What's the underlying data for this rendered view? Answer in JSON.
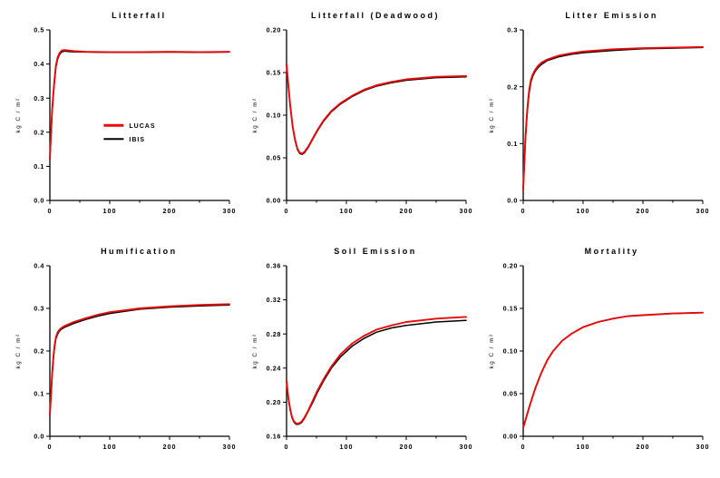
{
  "page": {
    "background": "#ffffff"
  },
  "colors": {
    "lucas": "#e80b0b",
    "ibis": "#000000",
    "axis": "#000000"
  },
  "legend": {
    "entries": [
      "LUCAS",
      "IBIS"
    ],
    "position": "inside-upper-left-of-middle"
  },
  "chart_data": [
    {
      "type": "line",
      "title": "Litterfall",
      "ylabel": "kg C / m²",
      "xlim": [
        0,
        300
      ],
      "ylim": [
        0,
        0.5
      ],
      "xticks": [
        0,
        100,
        200,
        300
      ],
      "xtick_labels": [
        "0",
        "100",
        "200",
        "300"
      ],
      "xticks_minor": [
        50,
        150,
        250
      ],
      "yticks": [
        0.0,
        0.1,
        0.2,
        0.3,
        0.4,
        0.5
      ],
      "ytick_labels": [
        "0.0",
        "0.1",
        "0.2",
        "0.3",
        "0.4",
        "0.5"
      ],
      "legend": true,
      "series": [
        {
          "name": "LUCAS",
          "color": "#e80b0b",
          "x": [
            0,
            2,
            4,
            6,
            8,
            10,
            13,
            16,
            20,
            25,
            30,
            40,
            60,
            100,
            150,
            200,
            250,
            300
          ],
          "y": [
            0.12,
            0.2,
            0.27,
            0.32,
            0.36,
            0.395,
            0.42,
            0.432,
            0.44,
            0.441,
            0.44,
            0.438,
            0.436,
            0.435,
            0.435,
            0.436,
            0.435,
            0.436
          ]
        },
        {
          "name": "IBIS",
          "color": "#000000",
          "x": [
            0,
            2,
            4,
            6,
            8,
            10,
            13,
            16,
            20,
            25,
            30,
            40,
            60,
            100,
            150,
            200,
            250,
            300
          ],
          "y": [
            0.12,
            0.195,
            0.265,
            0.315,
            0.355,
            0.39,
            0.415,
            0.428,
            0.436,
            0.438,
            0.437,
            0.436,
            0.435,
            0.434,
            0.434,
            0.435,
            0.434,
            0.435
          ]
        }
      ]
    },
    {
      "type": "line",
      "title": "Litterfall (Deadwood)",
      "ylabel": "kg C / m²",
      "xlim": [
        0,
        300
      ],
      "ylim": [
        0,
        0.2
      ],
      "xticks": [
        0,
        100,
        200,
        300
      ],
      "xtick_labels": [
        "0",
        "100",
        "200",
        "300"
      ],
      "xticks_minor": [
        50,
        150,
        250
      ],
      "yticks": [
        0.0,
        0.05,
        0.1,
        0.15,
        0.2
      ],
      "ytick_labels": [
        "0.00",
        "0.05",
        "0.10",
        "0.15",
        "0.20"
      ],
      "legend": false,
      "series": [
        {
          "name": "LUCAS",
          "color": "#e80b0b",
          "x": [
            0,
            3,
            6,
            10,
            14,
            18,
            22,
            26,
            30,
            36,
            44,
            52,
            62,
            75,
            90,
            110,
            130,
            150,
            175,
            200,
            250,
            300
          ],
          "y": [
            0.16,
            0.135,
            0.112,
            0.088,
            0.072,
            0.061,
            0.056,
            0.055,
            0.057,
            0.063,
            0.073,
            0.083,
            0.094,
            0.105,
            0.114,
            0.123,
            0.13,
            0.135,
            0.139,
            0.142,
            0.145,
            0.146
          ]
        },
        {
          "name": "IBIS",
          "color": "#000000",
          "x": [
            0,
            3,
            6,
            10,
            14,
            18,
            22,
            26,
            30,
            36,
            44,
            52,
            62,
            75,
            90,
            110,
            130,
            150,
            175,
            200,
            250,
            300
          ],
          "y": [
            0.16,
            0.134,
            0.111,
            0.087,
            0.071,
            0.06,
            0.055,
            0.054,
            0.056,
            0.062,
            0.072,
            0.082,
            0.093,
            0.104,
            0.113,
            0.122,
            0.129,
            0.134,
            0.138,
            0.141,
            0.144,
            0.145
          ]
        }
      ]
    },
    {
      "type": "line",
      "title": "Litter Emission",
      "ylabel": "kg C / m²",
      "xlim": [
        0,
        300
      ],
      "ylim": [
        0,
        0.3
      ],
      "xticks": [
        0,
        100,
        200,
        300
      ],
      "xtick_labels": [
        "0",
        "100",
        "200",
        "300"
      ],
      "xticks_minor": [
        50,
        150,
        250
      ],
      "yticks": [
        0.0,
        0.1,
        0.2,
        0.3
      ],
      "ytick_labels": [
        "0.0",
        "0.1",
        "0.2",
        "0.3"
      ],
      "legend": false,
      "series": [
        {
          "name": "LUCAS",
          "color": "#e80b0b",
          "x": [
            0,
            2,
            4,
            6,
            8,
            10,
            13,
            16,
            20,
            25,
            30,
            40,
            60,
            80,
            100,
            150,
            200,
            250,
            300
          ],
          "y": [
            0.02,
            0.07,
            0.115,
            0.15,
            0.175,
            0.195,
            0.213,
            0.222,
            0.23,
            0.237,
            0.242,
            0.248,
            0.255,
            0.259,
            0.262,
            0.266,
            0.268,
            0.269,
            0.27
          ]
        },
        {
          "name": "IBIS",
          "color": "#000000",
          "x": [
            0,
            2,
            4,
            6,
            8,
            10,
            13,
            16,
            20,
            25,
            30,
            40,
            60,
            80,
            100,
            150,
            200,
            250,
            300
          ],
          "y": [
            0.02,
            0.065,
            0.11,
            0.145,
            0.17,
            0.19,
            0.209,
            0.219,
            0.227,
            0.234,
            0.239,
            0.246,
            0.253,
            0.257,
            0.26,
            0.264,
            0.267,
            0.268,
            0.269
          ]
        }
      ]
    },
    {
      "type": "line",
      "title": "Humification",
      "ylabel": "kg C / m²",
      "xlim": [
        0,
        300
      ],
      "ylim": [
        0,
        0.4
      ],
      "xticks": [
        0,
        100,
        200,
        300
      ],
      "xtick_labels": [
        "0",
        "100",
        "200",
        "300"
      ],
      "xticks_minor": [
        50,
        150,
        250
      ],
      "yticks": [
        0.0,
        0.1,
        0.2,
        0.3,
        0.4
      ],
      "ytick_labels": [
        "0.0",
        "0.1",
        "0.2",
        "0.3",
        "0.4"
      ],
      "legend": false,
      "series": [
        {
          "name": "LUCAS",
          "color": "#e80b0b",
          "x": [
            0,
            2,
            4,
            6,
            8,
            10,
            13,
            16,
            20,
            25,
            30,
            40,
            60,
            80,
            100,
            150,
            200,
            250,
            300
          ],
          "y": [
            0.05,
            0.1,
            0.15,
            0.19,
            0.215,
            0.232,
            0.244,
            0.25,
            0.255,
            0.259,
            0.262,
            0.268,
            0.277,
            0.285,
            0.291,
            0.3,
            0.305,
            0.308,
            0.31
          ]
        },
        {
          "name": "IBIS",
          "color": "#000000",
          "x": [
            0,
            2,
            4,
            6,
            8,
            10,
            13,
            16,
            20,
            25,
            30,
            40,
            60,
            80,
            100,
            150,
            200,
            250,
            300
          ],
          "y": [
            0.05,
            0.095,
            0.145,
            0.185,
            0.21,
            0.228,
            0.24,
            0.247,
            0.252,
            0.256,
            0.259,
            0.265,
            0.274,
            0.282,
            0.288,
            0.298,
            0.303,
            0.306,
            0.308
          ]
        }
      ]
    },
    {
      "type": "line",
      "title": "Soil Emission",
      "ylabel": "kg C / m²",
      "xlim": [
        0,
        300
      ],
      "ylim": [
        0.16,
        0.36
      ],
      "xticks": [
        0,
        100,
        200,
        300
      ],
      "xtick_labels": [
        "0",
        "100",
        "200",
        "300"
      ],
      "xticks_minor": [
        50,
        150,
        250
      ],
      "yticks": [
        0.16,
        0.2,
        0.24,
        0.28,
        0.32,
        0.36
      ],
      "ytick_labels": [
        "0.16",
        "0.20",
        "0.24",
        "0.28",
        "0.32",
        "0.36"
      ],
      "legend": false,
      "series": [
        {
          "name": "LUCAS",
          "color": "#e80b0b",
          "x": [
            0,
            3,
            6,
            9,
            12,
            16,
            20,
            25,
            30,
            36,
            44,
            52,
            62,
            75,
            90,
            110,
            130,
            150,
            175,
            200,
            225,
            250,
            275,
            300
          ],
          "y": [
            0.225,
            0.205,
            0.192,
            0.183,
            0.178,
            0.175,
            0.175,
            0.177,
            0.182,
            0.19,
            0.202,
            0.214,
            0.227,
            0.242,
            0.256,
            0.269,
            0.278,
            0.285,
            0.29,
            0.294,
            0.296,
            0.298,
            0.299,
            0.3
          ]
        },
        {
          "name": "IBIS",
          "color": "#000000",
          "x": [
            0,
            3,
            6,
            9,
            12,
            16,
            20,
            25,
            30,
            36,
            44,
            52,
            62,
            75,
            90,
            110,
            130,
            150,
            175,
            200,
            225,
            250,
            275,
            300
          ],
          "y": [
            0.225,
            0.204,
            0.191,
            0.182,
            0.177,
            0.174,
            0.174,
            0.176,
            0.181,
            0.189,
            0.2,
            0.212,
            0.225,
            0.24,
            0.253,
            0.266,
            0.275,
            0.282,
            0.287,
            0.29,
            0.292,
            0.294,
            0.295,
            0.296
          ]
        }
      ]
    },
    {
      "type": "line",
      "title": "Mortality",
      "ylabel": "kg C / m²",
      "xlim": [
        0,
        300
      ],
      "ylim": [
        0,
        0.2
      ],
      "xticks": [
        0,
        100,
        200,
        300
      ],
      "xtick_labels": [
        "0",
        "100",
        "200",
        "300"
      ],
      "xticks_minor": [
        50,
        150,
        250
      ],
      "yticks": [
        0.0,
        0.05,
        0.1,
        0.15,
        0.2
      ],
      "ytick_labels": [
        "0.00",
        "0.05",
        "0.10",
        "0.15",
        "0.20"
      ],
      "legend": false,
      "series": [
        {
          "name": "LUCAS",
          "color": "#e80b0b",
          "x": [
            0,
            5,
            10,
            15,
            20,
            30,
            40,
            50,
            65,
            80,
            100,
            125,
            150,
            175,
            200,
            250,
            300
          ],
          "y": [
            0.01,
            0.022,
            0.034,
            0.045,
            0.056,
            0.074,
            0.089,
            0.1,
            0.112,
            0.12,
            0.128,
            0.134,
            0.138,
            0.141,
            0.142,
            0.144,
            0.145
          ]
        },
        {
          "name": "IBIS",
          "color": "#000000",
          "x": [
            0,
            5,
            10,
            15,
            20,
            30,
            40,
            50,
            65,
            80,
            100,
            125,
            150,
            175,
            200,
            250,
            300
          ],
          "y": [
            0.01,
            0.022,
            0.034,
            0.045,
            0.056,
            0.074,
            0.089,
            0.1,
            0.112,
            0.12,
            0.128,
            0.134,
            0.138,
            0.141,
            0.142,
            0.144,
            0.145
          ]
        }
      ]
    }
  ]
}
